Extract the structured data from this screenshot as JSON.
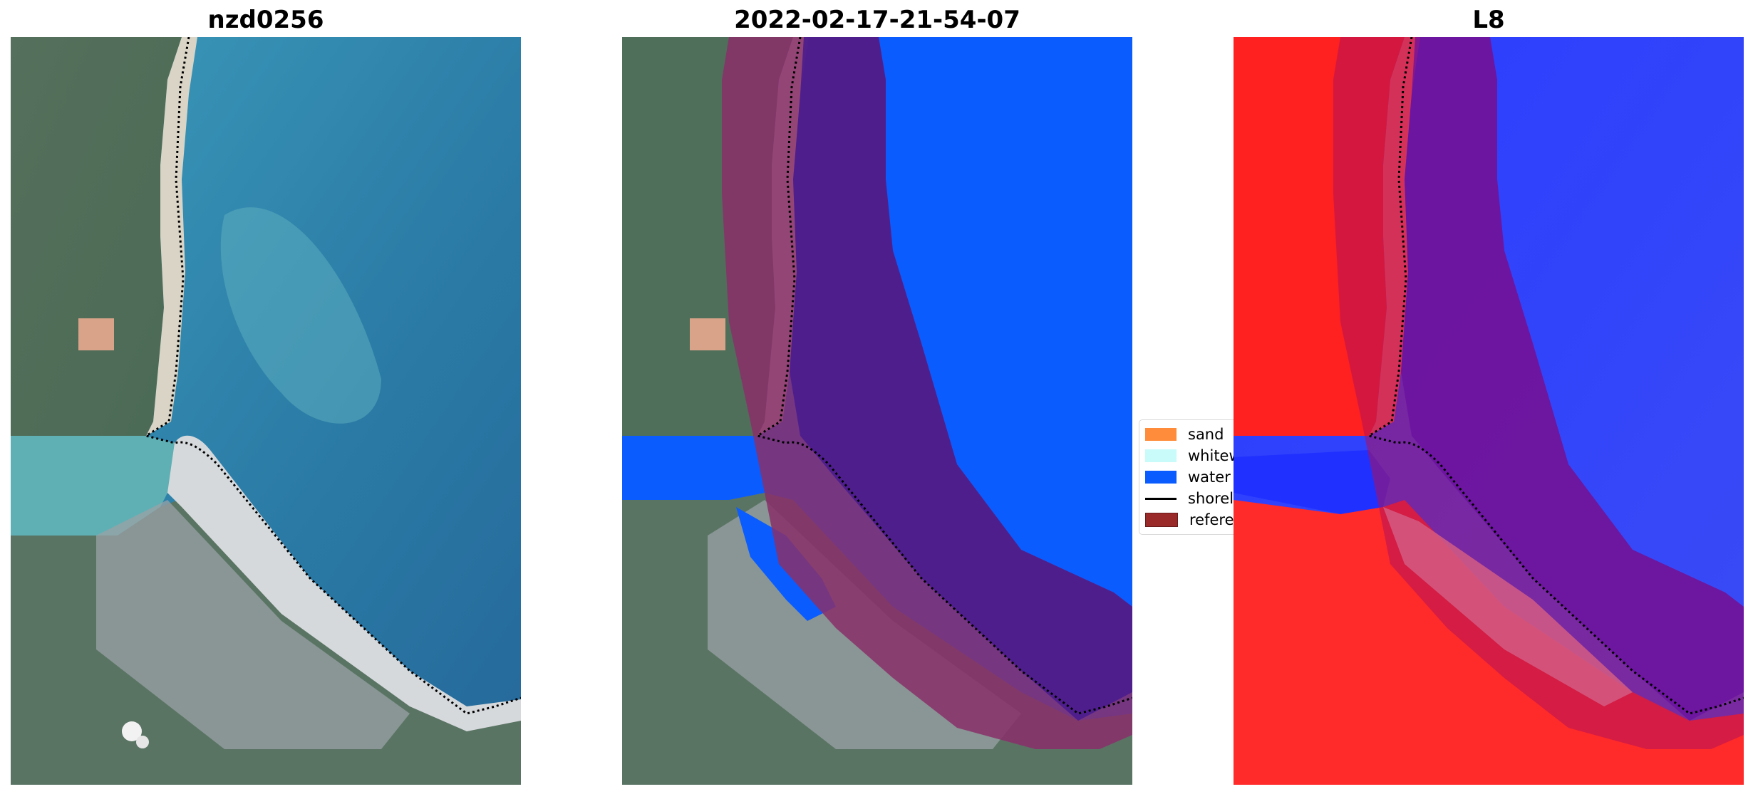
{
  "panels": [
    {
      "title": "nzd0256"
    },
    {
      "title": "2022-02-17-21-54-07"
    },
    {
      "title": "L8"
    }
  ],
  "legend": {
    "items": [
      {
        "label": "sand",
        "color": "#ff8c3a"
      },
      {
        "label": "whitewater",
        "color": "#c8fbf9"
      },
      {
        "label": "water",
        "color": "#0a5cff"
      },
      {
        "label": "shoreline",
        "color": "#000000"
      },
      {
        "label": "reference",
        "color": "#9a2a2a"
      }
    ]
  },
  "colors": {
    "ocean": "#2e7fa6",
    "land": "#4f6f5a",
    "water_class": "#0a5cff",
    "reference_overlay": "#8a2f6a",
    "l8_land": "#ff2020",
    "l8_water": "#2030ff"
  }
}
